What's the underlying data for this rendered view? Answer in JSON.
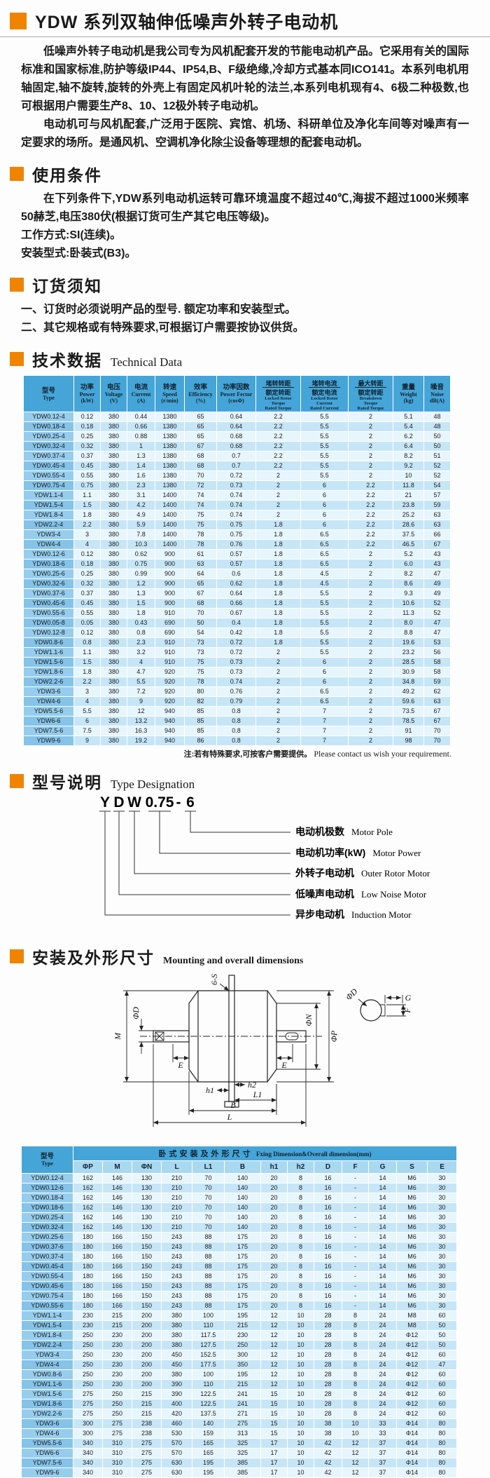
{
  "page_title": "YDW 系列双轴伸低噪声外转子电动机",
  "intro": {
    "p1": "低噪声外转子电动机是我公司专为风机配套开发的节能电动机产品。它采用有关的国际标准和国家标准,防护等级IP44、IP54,B、F级绝缘,冷却方式基本同ICO141。本系列电机用轴固定,轴不旋转,旋转的外壳上有固定风机叶轮的法兰,本系列电机现有4、6极二种极数,也可根据用户需要生产8、10、12极外转子电动机。",
    "p2": "电动机可与风机配套,广泛用于医院、宾馆、机场、科研单位及净化车间等对噪声有一定要求的场所。是通风机、空调机净化除尘设备等理想的配套电动机。"
  },
  "sections": {
    "usage": {
      "zh": "使用条件"
    },
    "ordering": {
      "zh": "订货须知"
    },
    "technical": {
      "zh": "技术数据",
      "en": "Technical Data"
    },
    "designation": {
      "zh": "型号说明",
      "en": "Type Designation"
    },
    "mounting": {
      "zh": "安装及外形尺寸",
      "en": "Mounting and overall dimensions"
    }
  },
  "usage": {
    "l1": "在下列条件下,YDW系列电动机运转可靠环境温度不超过40℃,海拔不超过1000米频率50赫芝,电压380伏(根据订货可生产其它电压等级)。",
    "l2": "工作方式:SI(连续)。",
    "l3": "安装型式:卧装式(B3)。"
  },
  "ordering": {
    "i1": "一、订货时必须说明产品的型号. 额定功率和安装型式。",
    "i2": "二、其它规格或有特殊要求,可根据订户需要按协议供货。"
  },
  "table1": {
    "h": {
      "type_zh": "型号",
      "type_en": "Type",
      "power_zh": "功率",
      "power_en": "Power",
      "power_u": "(kW)",
      "volt_zh": "电压",
      "volt_en": "Voltage",
      "volt_u": "(V)",
      "curr_zh": "电流",
      "curr_en": "Current",
      "curr_u": "(A)",
      "speed_zh": "转速",
      "speed_en": "Speed",
      "speed_u": "(r/min)",
      "eff_zh": "效率",
      "eff_en": "Efficiency",
      "eff_u": "(%)",
      "pf_zh": "功率因数",
      "pf_en": "Power Fector",
      "pf_u": "(cosΦ)",
      "lrt_zh1": "堵转转距",
      "lrt_zh2": "额定转距",
      "lrt_en1": "Locked Rotor",
      "lrt_en2": "Torque",
      "lrt_en3": "Rated Torque",
      "lrc_zh1": "堵转电流",
      "lrc_zh2": "额定电流",
      "lrc_en1": "Locked Rotor",
      "lrc_en2": "Current",
      "lrc_en3": "Rated Current",
      "bdt_zh1": "最大转距",
      "bdt_zh2": "额定转距",
      "bdt_en1": "Breakdown",
      "bdt_en2": "Torque",
      "bdt_en3": "Rated Torque",
      "wt_zh": "重量",
      "wt_en": "Weight",
      "wt_u": "(kg)",
      "noise_zh": "噪音",
      "noise_en": "Noise",
      "noise_u": "dB(A)"
    },
    "rows": [
      [
        "YDW0.12-4",
        "0.12",
        "380",
        "0.44",
        "1380",
        "65",
        "0.64",
        "2.2",
        "5.5",
        "2",
        "5.1",
        "48"
      ],
      [
        "YDW0.18-4",
        "0.18",
        "380",
        "0.66",
        "1380",
        "65",
        "0.64",
        "2.2",
        "5.5",
        "2",
        "5.4",
        "48"
      ],
      [
        "YDW0.25-4",
        "0.25",
        "380",
        "0.88",
        "1380",
        "65",
        "0.68",
        "2.2",
        "5.5",
        "2",
        "6.2",
        "50"
      ],
      [
        "YDW0.32-4",
        "0.32",
        "380",
        "1",
        "1380",
        "67",
        "0.68",
        "2.2",
        "5.5",
        "2",
        "6.4",
        "50"
      ],
      [
        "YDW0.37-4",
        "0.37",
        "380",
        "1.3",
        "1380",
        "68",
        "0.7",
        "2.2",
        "5.5",
        "2",
        "8.2",
        "51"
      ],
      [
        "YDW0.45-4",
        "0.45",
        "380",
        "1.4",
        "1380",
        "68",
        "0.7",
        "2.2",
        "5.5",
        "2",
        "9.2",
        "52"
      ],
      [
        "YDW0.55-4",
        "0.55",
        "380",
        "1.6",
        "1380",
        "70",
        "0.72",
        "2",
        "5.5",
        "2",
        "10",
        "52"
      ],
      [
        "YDW0.75-4",
        "0.75",
        "380",
        "2.3",
        "1380",
        "72",
        "0.73",
        "2",
        "6",
        "2.2",
        "11.8",
        "54"
      ],
      [
        "YDW1.1-4",
        "1.1",
        "380",
        "3.1",
        "1400",
        "74",
        "0.74",
        "2",
        "6",
        "2.2",
        "21",
        "57"
      ],
      [
        "YDW1.5-4",
        "1.5",
        "380",
        "4.2",
        "1400",
        "74",
        "0.74",
        "2",
        "6",
        "2.2",
        "23.8",
        "59"
      ],
      [
        "YDW1.8-4",
        "1.8",
        "380",
        "4.9",
        "1400",
        "75",
        "0.74",
        "2",
        "6",
        "2.2",
        "25.2",
        "63"
      ],
      [
        "YDW2.2-4",
        "2.2",
        "380",
        "5.9",
        "1400",
        "75",
        "0.75",
        "1.8",
        "6",
        "2.2",
        "28.6",
        "63"
      ],
      [
        "YDW3-4",
        "3",
        "380",
        "7.8",
        "1400",
        "78",
        "0.75",
        "1.8",
        "6.5",
        "2.2",
        "37.5",
        "66"
      ],
      [
        "YDW4-4",
        "4",
        "380",
        "10.3",
        "1400",
        "78",
        "0.76",
        "1.8",
        "6.5",
        "2.2",
        "46.5",
        "67"
      ],
      [
        "YDW0.12-6",
        "0.12",
        "380",
        "0.62",
        "900",
        "61",
        "0.57",
        "1.8",
        "6.5",
        "2",
        "5.2",
        "43"
      ],
      [
        "YDW0.18-6",
        "0.18",
        "380",
        "0.75",
        "900",
        "63",
        "0.57",
        "1.8",
        "6.5",
        "2",
        "6.0",
        "43"
      ],
      [
        "YDW0.25-6",
        "0.25",
        "380",
        "0.99",
        "900",
        "64",
        "0.6",
        "1.8",
        "4.5",
        "2",
        "8.2",
        "47"
      ],
      [
        "YDW0.32-6",
        "0.32",
        "380",
        "1.2",
        "900",
        "65",
        "0.62",
        "1.8",
        "4.5",
        "2",
        "8.6",
        "49"
      ],
      [
        "YDW0.37-6",
        "0.37",
        "380",
        "1.3",
        "900",
        "67",
        "0.64",
        "1.8",
        "5.5",
        "2",
        "9.3",
        "49"
      ],
      [
        "YDW0.45-6",
        "0.45",
        "380",
        "1.5",
        "900",
        "68",
        "0.66",
        "1.8",
        "5.5",
        "2",
        "10.6",
        "52"
      ],
      [
        "YDW0.55-6",
        "0.55",
        "380",
        "1.8",
        "910",
        "70",
        "0.67",
        "1.8",
        "5.5",
        "2",
        "11.3",
        "52"
      ],
      [
        "YDW0.05-8",
        "0.05",
        "380",
        "0.43",
        "690",
        "50",
        "0.4",
        "1.8",
        "5.5",
        "2",
        "8.0",
        "47"
      ],
      [
        "YDW0.12-8",
        "0.12",
        "380",
        "0.8",
        "690",
        "54",
        "0.42",
        "1.8",
        "5.5",
        "2",
        "8.8",
        "47"
      ],
      [
        "YDW0.8-6",
        "0.8",
        "380",
        "2.3",
        "910",
        "73",
        "0.72",
        "1.8",
        "5.5",
        "2",
        "19.6",
        "53"
      ],
      [
        "YDW1.1-6",
        "1.1",
        "380",
        "3.2",
        "910",
        "73",
        "0.72",
        "2",
        "5.5",
        "2",
        "23.2",
        "56"
      ],
      [
        "YDW1.5-6",
        "1.5",
        "380",
        "4",
        "910",
        "75",
        "0.73",
        "2",
        "6",
        "2",
        "28.5",
        "58"
      ],
      [
        "YDW1.8-6",
        "1.8",
        "380",
        "4.7",
        "920",
        "75",
        "0.73",
        "2",
        "6",
        "2",
        "30.9",
        "58"
      ],
      [
        "YDW2.2-6",
        "2.2",
        "380",
        "5.5",
        "920",
        "78",
        "0.74",
        "2",
        "6",
        "2",
        "34.8",
        "59"
      ],
      [
        "YDW3-6",
        "3",
        "380",
        "7.2",
        "920",
        "80",
        "0.76",
        "2",
        "6.5",
        "2",
        "49.2",
        "62"
      ],
      [
        "YDW4-6",
        "4",
        "380",
        "9",
        "920",
        "82",
        "0.79",
        "2",
        "6.5",
        "2",
        "59.6",
        "63"
      ],
      [
        "YDW5.5-6",
        "5.5",
        "380",
        "12",
        "940",
        "85",
        "0.8",
        "2",
        "7",
        "2",
        "73.5",
        "67"
      ],
      [
        "YDW6-6",
        "6",
        "380",
        "13.2",
        "940",
        "85",
        "0.8",
        "2",
        "7",
        "2",
        "78.5",
        "67"
      ],
      [
        "YDW7.5-6",
        "7.5",
        "380",
        "16.3",
        "940",
        "85",
        "0.8",
        "2",
        "7",
        "2",
        "91",
        "70"
      ],
      [
        "YDW9-6",
        "9",
        "380",
        "19.2",
        "940",
        "86",
        "0.8",
        "2",
        "7",
        "2",
        "98",
        "70"
      ]
    ],
    "note_zh": "注:若有特殊要求,可按客户需要提供。",
    "note_en": "Please contact us wish your requirement."
  },
  "designation": {
    "code": [
      "Y",
      "D",
      "W",
      "0.75",
      "-",
      "6"
    ],
    "labels": [
      {
        "zh": "电动机极数",
        "en": "Motor Pole"
      },
      {
        "zh": "电动机功率(kW)",
        "en": "Motor Power"
      },
      {
        "zh": "外转子电动机",
        "en": "Outer Rotor Motor"
      },
      {
        "zh": "低噪声电动机",
        "en": "Low Noise Motor"
      },
      {
        "zh": "异步电动机",
        "en": "Induction Motor"
      }
    ]
  },
  "drawing": {
    "labels": {
      "six_s": "6-S",
      "m": "M",
      "phi_d": "ΦD",
      "e": "E",
      "phi_n": "ΦN",
      "phi_p": "ΦP",
      "h1": "h1",
      "h2": "h2",
      "l1": "L1",
      "b": "B",
      "l": "L",
      "g": "G",
      "f": "F"
    }
  },
  "table2": {
    "type_zh": "型号",
    "type_en": "Type",
    "title_zh": "卧式安装及外形尺寸",
    "title_en": "Fxing Dimension&Overall dimension(mm)",
    "cols": [
      "ΦP",
      "M",
      "ΦN",
      "L",
      "L1",
      "B",
      "h1",
      "h2",
      "D",
      "F",
      "G",
      "S",
      "E"
    ],
    "rows": [
      [
        "YDW0.12-4",
        "162",
        "146",
        "130",
        "210",
        "70",
        "140",
        "20",
        "8",
        "16",
        "-",
        "14",
        "M6",
        "30"
      ],
      [
        "YDW0.12-6",
        "162",
        "146",
        "130",
        "210",
        "70",
        "140",
        "20",
        "8",
        "16",
        "-",
        "14",
        "M6",
        "30"
      ],
      [
        "YDW0.18-4",
        "162",
        "146",
        "130",
        "210",
        "70",
        "140",
        "20",
        "8",
        "16",
        "-",
        "14",
        "M6",
        "30"
      ],
      [
        "YDW0.18-6",
        "162",
        "146",
        "130",
        "210",
        "70",
        "140",
        "20",
        "8",
        "16",
        "-",
        "14",
        "M6",
        "30"
      ],
      [
        "YDW0.25-4",
        "162",
        "146",
        "130",
        "210",
        "70",
        "140",
        "20",
        "8",
        "16",
        "-",
        "14",
        "M6",
        "30"
      ],
      [
        "YDW0.32-4",
        "162",
        "146",
        "130",
        "210",
        "70",
        "140",
        "20",
        "8",
        "16",
        "-",
        "14",
        "M6",
        "30"
      ],
      [
        "YDW0.25-6",
        "180",
        "166",
        "150",
        "243",
        "88",
        "175",
        "20",
        "8",
        "16",
        "-",
        "14",
        "M6",
        "30"
      ],
      [
        "YDW0.37-6",
        "180",
        "166",
        "150",
        "243",
        "88",
        "175",
        "20",
        "8",
        "16",
        "-",
        "14",
        "M6",
        "30"
      ],
      [
        "YDW0.37-4",
        "180",
        "166",
        "150",
        "243",
        "88",
        "175",
        "20",
        "8",
        "16",
        "-",
        "14",
        "M6",
        "30"
      ],
      [
        "YDW0.45-4",
        "180",
        "166",
        "150",
        "243",
        "88",
        "175",
        "20",
        "8",
        "16",
        "-",
        "14",
        "M6",
        "30"
      ],
      [
        "YDW0.55-4",
        "180",
        "166",
        "150",
        "243",
        "88",
        "175",
        "20",
        "8",
        "16",
        "-",
        "14",
        "M6",
        "30"
      ],
      [
        "YDW0.45-6",
        "180",
        "166",
        "150",
        "243",
        "88",
        "175",
        "20",
        "8",
        "16",
        "-",
        "14",
        "M6",
        "30"
      ],
      [
        "YDW0.75-4",
        "180",
        "166",
        "150",
        "243",
        "88",
        "175",
        "20",
        "8",
        "16",
        "-",
        "14",
        "M6",
        "30"
      ],
      [
        "YDW0.55-6",
        "180",
        "166",
        "150",
        "243",
        "88",
        "175",
        "20",
        "8",
        "16",
        "-",
        "14",
        "M6",
        "30"
      ],
      [
        "YDW1.1-4",
        "230",
        "215",
        "200",
        "380",
        "100",
        "195",
        "12",
        "10",
        "28",
        "8",
        "24",
        "M8",
        "60"
      ],
      [
        "YDW1.5-4",
        "230",
        "215",
        "200",
        "380",
        "110",
        "215",
        "12",
        "10",
        "28",
        "8",
        "24",
        "M8",
        "50"
      ],
      [
        "YDW1.8-4",
        "250",
        "230",
        "200",
        "380",
        "117.5",
        "230",
        "12",
        "10",
        "28",
        "8",
        "24",
        "Φ12",
        "50"
      ],
      [
        "YDW2.2-4",
        "250",
        "230",
        "200",
        "380",
        "127.5",
        "250",
        "12",
        "10",
        "28",
        "8",
        "24",
        "Φ12",
        "50"
      ],
      [
        "YDW3-4",
        "250",
        "230",
        "200",
        "450",
        "152.5",
        "300",
        "12",
        "10",
        "28",
        "8",
        "24",
        "Φ12",
        "60"
      ],
      [
        "YDW4-4",
        "250",
        "230",
        "200",
        "450",
        "177.5",
        "350",
        "12",
        "10",
        "28",
        "8",
        "24",
        "Φ12",
        "47"
      ],
      [
        "YDW0.8-6",
        "250",
        "230",
        "200",
        "380",
        "100",
        "195",
        "12",
        "10",
        "28",
        "8",
        "24",
        "Φ12",
        "60"
      ],
      [
        "YDW1.1-6",
        "250",
        "230",
        "200",
        "390",
        "110",
        "215",
        "12",
        "10",
        "28",
        "8",
        "24",
        "Φ12",
        "60"
      ],
      [
        "YDW1.5-6",
        "275",
        "250",
        "215",
        "390",
        "122.5",
        "241",
        "15",
        "10",
        "28",
        "8",
        "24",
        "Φ12",
        "60"
      ],
      [
        "YDW1.8-6",
        "275",
        "250",
        "215",
        "400",
        "122.5",
        "241",
        "15",
        "10",
        "28",
        "8",
        "24",
        "Φ12",
        "60"
      ],
      [
        "YDW2.2-6",
        "275",
        "250",
        "215",
        "420",
        "137.5",
        "271",
        "15",
        "10",
        "28",
        "8",
        "24",
        "Φ12",
        "60"
      ],
      [
        "YDW3-6",
        "300",
        "275",
        "238",
        "460",
        "140",
        "275",
        "15",
        "10",
        "38",
        "10",
        "33",
        "Φ14",
        "80"
      ],
      [
        "YDW4-6",
        "300",
        "275",
        "238",
        "530",
        "159",
        "313",
        "15",
        "10",
        "38",
        "10",
        "33",
        "Φ14",
        "80"
      ],
      [
        "YDW5.5-6",
        "340",
        "310",
        "275",
        "570",
        "165",
        "325",
        "17",
        "10",
        "42",
        "12",
        "37",
        "Φ14",
        "80"
      ],
      [
        "YDW6-6",
        "340",
        "310",
        "275",
        "570",
        "165",
        "325",
        "17",
        "10",
        "42",
        "12",
        "37",
        "Φ14",
        "80"
      ],
      [
        "YDW7.5-6",
        "340",
        "310",
        "275",
        "630",
        "195",
        "385",
        "17",
        "10",
        "42",
        "12",
        "37",
        "Φ14",
        "80"
      ],
      [
        "YDW9-6",
        "340",
        "310",
        "275",
        "630",
        "195",
        "385",
        "17",
        "10",
        "42",
        "12",
        "37",
        "Φ14",
        "80"
      ]
    ]
  },
  "colors": {
    "accent_orange": "#f08300",
    "table_header_blue": "#45a5d8",
    "type_column_blue": "#8cc8ec",
    "row_light_blue": "#e7f5fd",
    "row_mid_blue": "#c6e6f7",
    "subheader_blue": "#a9d8f1"
  }
}
